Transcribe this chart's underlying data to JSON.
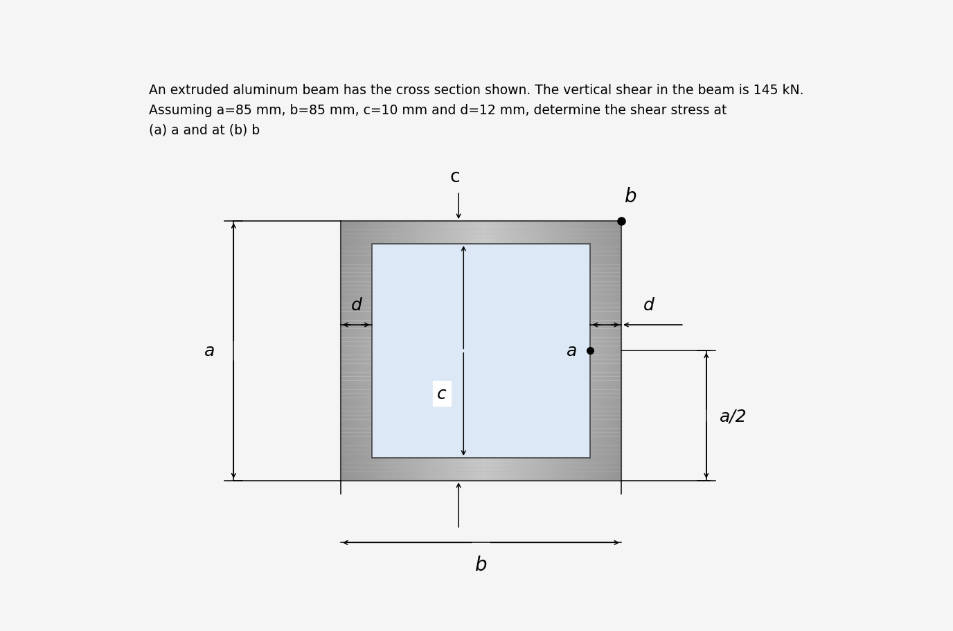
{
  "title_line1": "An extruded aluminum beam has the cross section shown. The vertical shear in the beam is 145 kN.",
  "title_line2": "Assuming a=85 mm, b=85 mm, c=10 mm and d=12 mm, determine the shear stress at",
  "title_line3": "(a) a and at (b) b",
  "bg_color": "#f5f5f5",
  "inner_fill": "#dce8f5",
  "outer_gray_light": "#cccccc",
  "outer_gray_dark": "#888888",
  "outer_gray_mid": "#b8b8b8",
  "ox": 3.0,
  "oy": 1.5,
  "ow": 3.8,
  "oh": 4.8,
  "wall": 0.42,
  "font_title": 13.5,
  "font_label": 18,
  "font_label_sm": 16
}
